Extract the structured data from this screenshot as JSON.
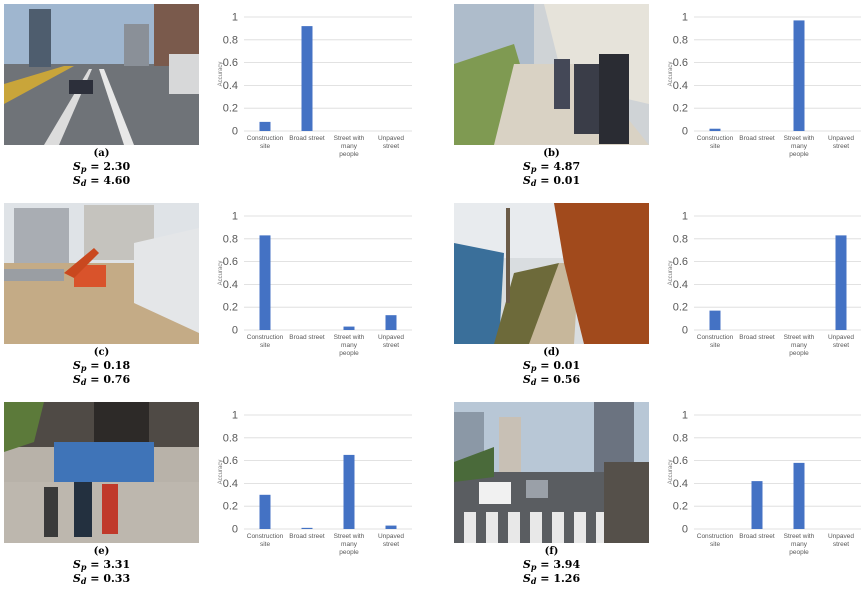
{
  "panels": [
    {
      "label": "(a)",
      "sp": "2.30",
      "sd": "4.60",
      "values": [
        0.08,
        0.92,
        0.0,
        0.0
      ],
      "scene": "road"
    },
    {
      "label": "(b)",
      "sp": "4.87",
      "sd": "0.01",
      "values": [
        0.02,
        0.0,
        0.97,
        0.0
      ],
      "scene": "walkway"
    },
    {
      "label": "(c)",
      "sp": "0.18",
      "sd": "0.76",
      "values": [
        0.83,
        0.0,
        0.03,
        0.13
      ],
      "scene": "construction"
    },
    {
      "label": "(d)",
      "sp": "0.01",
      "sd": "0.56",
      "values": [
        0.17,
        0.0,
        0.0,
        0.83
      ],
      "scene": "path"
    },
    {
      "label": "(e)",
      "sp": "3.31",
      "sd": "0.33",
      "values": [
        0.3,
        0.01,
        0.65,
        0.03
      ],
      "scene": "plaza"
    },
    {
      "label": "(f)",
      "sp": "3.94",
      "sd": "1.26",
      "values": [
        0.0,
        0.42,
        0.58,
        0.0
      ],
      "scene": "crossing"
    }
  ],
  "labels": {
    "s": "S",
    "p": "p",
    "d": "d",
    "eq": " = "
  },
  "chart_data": {
    "type": "bar",
    "categories": [
      [
        "Construction",
        "site"
      ],
      [
        "Broad street"
      ],
      [
        "Street with",
        "many",
        "people"
      ],
      [
        "Unpaved",
        "street"
      ]
    ],
    "ylabel": "Accuracy",
    "ylim": [
      0,
      1
    ],
    "yticks": [
      "0",
      "0.2",
      "0.4",
      "0.6",
      "0.8",
      "1"
    ],
    "bar_color": "#4472c4",
    "gridlines": true
  }
}
